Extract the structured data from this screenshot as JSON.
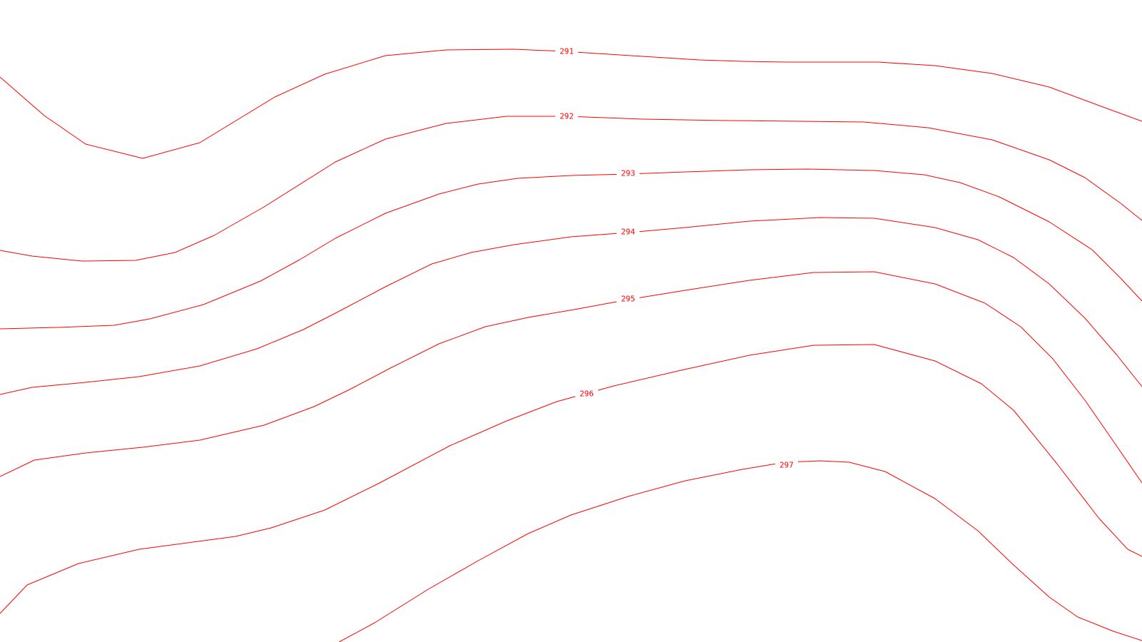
{
  "map": {
    "background_color": "#ffffff",
    "contour_color": "#ff0000",
    "contours": [
      {
        "level": "291",
        "label": "291"
      },
      {
        "level": "292",
        "label": "292"
      },
      {
        "level": "293",
        "label": "293"
      },
      {
        "level": "294",
        "label": "294"
      },
      {
        "level": "295",
        "label": "295"
      },
      {
        "level": "296",
        "label": "296"
      },
      {
        "level": "297",
        "label": "297"
      }
    ]
  }
}
